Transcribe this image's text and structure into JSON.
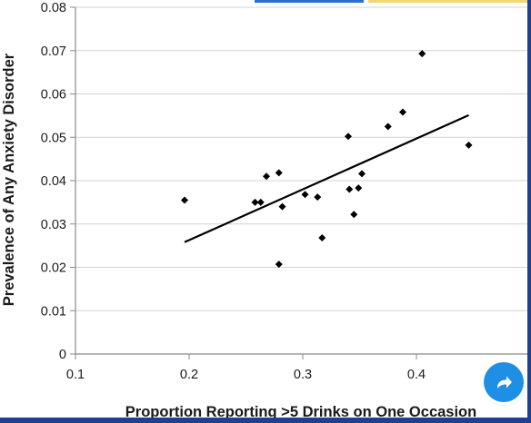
{
  "chart_data": {
    "type": "scatter",
    "title": "",
    "xlabel": "Proportion Reporting >5 Drinks on One Occasion",
    "ylabel": "Prevalence of Any Anxiety Disorder",
    "xlim": [
      0.1,
      0.5
    ],
    "ylim": [
      0,
      0.08
    ],
    "x_ticks": [
      "0.1",
      "0.2",
      "0.3",
      "0.4"
    ],
    "y_ticks": [
      "0",
      "0.01",
      "0.02",
      "0.03",
      "0.04",
      "0.05",
      "0.06",
      "0.07",
      "0.08"
    ],
    "grid": "horizontal",
    "points": [
      {
        "x": 0.196,
        "y": 0.0355
      },
      {
        "x": 0.258,
        "y": 0.035
      },
      {
        "x": 0.263,
        "y": 0.035
      },
      {
        "x": 0.268,
        "y": 0.041
      },
      {
        "x": 0.279,
        "y": 0.0418
      },
      {
        "x": 0.279,
        "y": 0.0207
      },
      {
        "x": 0.282,
        "y": 0.034
      },
      {
        "x": 0.302,
        "y": 0.0368
      },
      {
        "x": 0.313,
        "y": 0.0362
      },
      {
        "x": 0.317,
        "y": 0.0268
      },
      {
        "x": 0.34,
        "y": 0.0502
      },
      {
        "x": 0.341,
        "y": 0.038
      },
      {
        "x": 0.345,
        "y": 0.0322
      },
      {
        "x": 0.349,
        "y": 0.0383
      },
      {
        "x": 0.352,
        "y": 0.0416
      },
      {
        "x": 0.375,
        "y": 0.0525
      },
      {
        "x": 0.388,
        "y": 0.0558
      },
      {
        "x": 0.405,
        "y": 0.0693
      },
      {
        "x": 0.446,
        "y": 0.0482
      }
    ],
    "trendline": [
      {
        "x": 0.196,
        "y": 0.0258
      },
      {
        "x": 0.446,
        "y": 0.0551
      }
    ],
    "colors": {
      "marker": "#000000",
      "line": "#000000",
      "grid": "#d4d4d4",
      "axis": "#8a8a8a",
      "text": "#1a1a1a"
    }
  },
  "ui": {
    "share_icon": "share-arrow-icon",
    "share_color": "#1f8fe6",
    "frame_color": "#1f3f8f"
  }
}
